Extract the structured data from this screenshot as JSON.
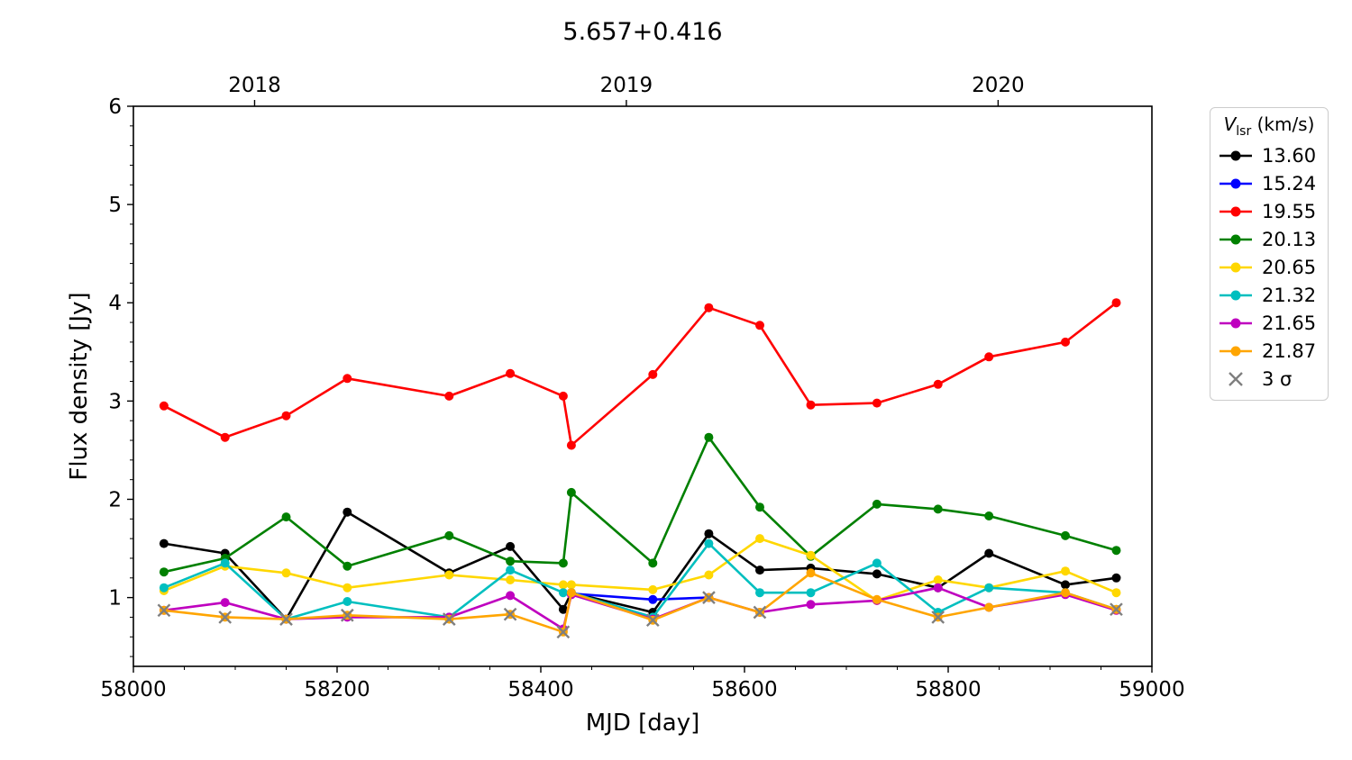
{
  "figure": {
    "title": "5.657+0.416",
    "xlabel": "MJD [day]",
    "ylabel": "Flux density [Jy]"
  },
  "legend": {
    "title_symbol": "V",
    "title_subscript": "lsr",
    "title_unit": " (km/s)",
    "sigma_label": "3 σ",
    "sigma_color": "#7f7f7f"
  },
  "chart_data": {
    "type": "line",
    "title": "5.657+0.416",
    "xlabel": "MJD [day]",
    "ylabel": "Flux density [Jy]",
    "xlim": [
      58000,
      59000
    ],
    "ylim": [
      0.3,
      6.0
    ],
    "x_major_ticks": [
      58000,
      58200,
      58400,
      58600,
      58800,
      59000
    ],
    "y_major_ticks": [
      1,
      2,
      3,
      4,
      5,
      6
    ],
    "x_minor_step": 50,
    "y_minor_step": 0.2,
    "top_axis_ticks": [
      {
        "x": 58119,
        "label": "2018"
      },
      {
        "x": 58484,
        "label": "2019"
      },
      {
        "x": 58849,
        "label": "2020"
      }
    ],
    "legend_title": "V_lsr (km/s)",
    "legend_position": "outside right top",
    "grid": false,
    "x": [
      58030,
      58090,
      58150,
      58210,
      58310,
      58370,
      58422,
      58430,
      58510,
      58565,
      58615,
      58665,
      58730,
      58790,
      58840,
      58915,
      58965
    ],
    "series": [
      {
        "name": "13.60",
        "color": "#000000",
        "values": [
          1.55,
          1.45,
          0.78,
          1.87,
          1.25,
          1.52,
          0.88,
          1.05,
          0.85,
          1.65,
          1.28,
          1.3,
          1.24,
          1.1,
          1.45,
          1.13,
          1.2
        ]
      },
      {
        "name": "15.24",
        "color": "#0000ff",
        "values": [
          null,
          null,
          null,
          null,
          null,
          null,
          null,
          1.04,
          0.98,
          1.0,
          null,
          null,
          null,
          null,
          null,
          null,
          null
        ]
      },
      {
        "name": "19.55",
        "color": "#ff0000",
        "values": [
          2.95,
          2.63,
          2.85,
          3.23,
          3.05,
          3.28,
          3.05,
          2.55,
          3.27,
          3.95,
          3.77,
          2.96,
          2.98,
          3.17,
          3.45,
          3.6,
          4.0
        ]
      },
      {
        "name": "20.13",
        "color": "#008000",
        "values": [
          1.26,
          1.4,
          1.82,
          1.32,
          1.63,
          1.37,
          1.35,
          2.07,
          1.35,
          2.63,
          1.92,
          1.42,
          1.95,
          1.9,
          1.83,
          1.63,
          1.48
        ]
      },
      {
        "name": "20.65",
        "color": "#ffd700",
        "values": [
          1.07,
          1.32,
          1.25,
          1.1,
          1.23,
          1.18,
          1.13,
          1.13,
          1.08,
          1.23,
          1.6,
          1.43,
          0.97,
          1.18,
          1.1,
          1.27,
          1.05
        ]
      },
      {
        "name": "21.32",
        "color": "#00bfbf",
        "values": [
          1.1,
          1.35,
          0.78,
          0.96,
          0.8,
          1.28,
          1.05,
          1.05,
          0.8,
          1.55,
          1.05,
          1.05,
          1.35,
          0.85,
          1.1,
          1.05,
          0.88
        ]
      },
      {
        "name": "21.65",
        "color": "#bf00bf",
        "values": [
          0.87,
          0.95,
          0.78,
          0.8,
          0.8,
          1.02,
          0.68,
          1.03,
          0.78,
          1.0,
          0.85,
          0.93,
          0.97,
          1.1,
          0.9,
          1.03,
          0.87
        ]
      },
      {
        "name": "21.87",
        "color": "#ffa500",
        "values": [
          0.87,
          0.8,
          0.78,
          0.82,
          0.78,
          0.83,
          0.65,
          1.05,
          0.77,
          1.0,
          0.85,
          1.25,
          0.98,
          0.8,
          0.9,
          1.05,
          0.88
        ]
      }
    ],
    "upper_limits": {
      "name": "3 σ",
      "color": "#7f7f7f",
      "marker": "x",
      "points": [
        [
          58030,
          0.87
        ],
        [
          58090,
          0.8
        ],
        [
          58150,
          0.78
        ],
        [
          58210,
          0.82
        ],
        [
          58310,
          0.78
        ],
        [
          58370,
          0.83
        ],
        [
          58422,
          0.65
        ],
        [
          58510,
          0.77
        ],
        [
          58565,
          1.0
        ],
        [
          58615,
          0.85
        ],
        [
          58790,
          0.8
        ],
        [
          58965,
          0.88
        ]
      ]
    }
  }
}
